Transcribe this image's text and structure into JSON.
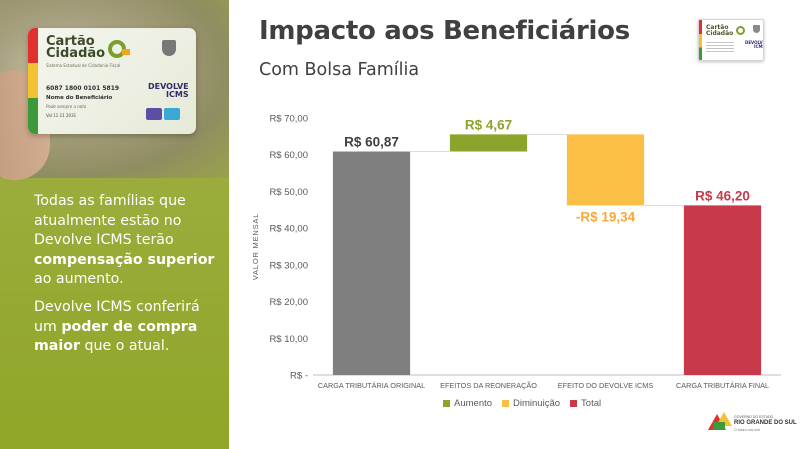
{
  "slide": {
    "title": "Impacto aos Beneficiários",
    "subtitle": "Com Bolsa Família"
  },
  "card": {
    "title": "Cartão\nCidadão",
    "subtitle": "Sistema Estadual de Cidadania Fiscal",
    "number": "6087 1800 0101 5819",
    "name_label": "Nome do Beneficiário",
    "hint": "Pode sempre a nota",
    "date": "Val 11 11 2031",
    "program": "DEVOLVE\nICMS"
  },
  "thumbnail": {
    "title": "Cartão\nCidadão",
    "program": "DEVOLVE\nICMS"
  },
  "left_text": {
    "p1_part1": "Todas as famílias que atualmente estão no Devolve ICMS terão ",
    "p1_bold": "compensação superior",
    "p1_part2": " ao aumento.",
    "p2_part1": "Devolve ICMS conferirá um ",
    "p2_bold": "poder de compra maior",
    "p2_part2": " que o atual."
  },
  "chart_data": {
    "type": "waterfall",
    "ylabel": "VALOR MENSAL",
    "ylim": [
      0,
      70
    ],
    "yticks": [
      {
        "value": 0,
        "label": "R$ -"
      },
      {
        "value": 10,
        "label": "R$ 10,00"
      },
      {
        "value": 20,
        "label": "R$ 20,00"
      },
      {
        "value": 30,
        "label": "R$ 30,00"
      },
      {
        "value": 40,
        "label": "R$ 40,00"
      },
      {
        "value": 50,
        "label": "R$ 50,00"
      },
      {
        "value": 60,
        "label": "R$ 60,00"
      },
      {
        "value": 70,
        "label": "R$ 70,00"
      }
    ],
    "grid": false,
    "categories": [
      "CARGA TRIBUTÁRIA ORIGINAL",
      "EFEITOS DA REONERAÇÃO",
      "EFEITO DO DEVOLVE ICMS",
      "CARGA TRIBUTÁRIA FINAL"
    ],
    "bars": [
      {
        "kind": "start",
        "start": 0,
        "end": 60.87,
        "label": "R$ 60,87",
        "color": "#7f7f7f",
        "label_color": "#404040"
      },
      {
        "kind": "increase",
        "start": 60.87,
        "end": 65.54,
        "label": "R$ 4,67",
        "color": "#8ba52c",
        "label_color": "#8ba52c"
      },
      {
        "kind": "decrease",
        "start": 65.54,
        "end": 46.2,
        "label": "-R$ 19,34",
        "color": "#fbbf45",
        "label_color": "#f4a93a"
      },
      {
        "kind": "total",
        "start": 0,
        "end": 46.2,
        "label": "R$ 46,20",
        "color": "#c83a4b",
        "label_color": "#c83a4b"
      }
    ],
    "legend": {
      "position": "bottom",
      "items": [
        {
          "name": "Aumento",
          "color": "#8ba52c"
        },
        {
          "name": "Diminuição",
          "color": "#fbbf45"
        },
        {
          "name": "Total",
          "color": "#c83a4b"
        }
      ]
    }
  },
  "footer": {
    "small": "GOVERNO DO ESTADO",
    "main": "RIO GRANDE DO SUL",
    "tag": "O futuro nos une"
  }
}
